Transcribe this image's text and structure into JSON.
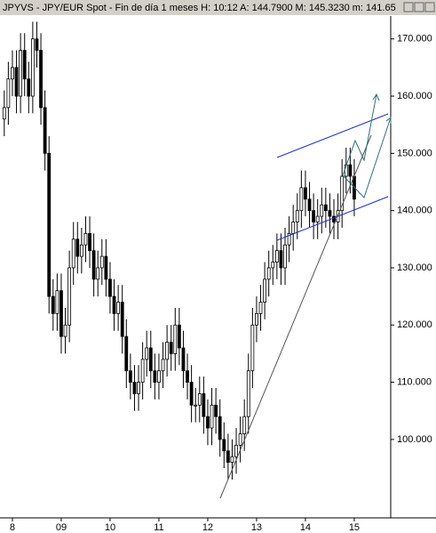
{
  "chart_data": {
    "type": "candlestick",
    "title": "JPYVS - JPY/EUR Spot - Fin de día 1 meses  H: 10:12  A: 144.7900  M: 145.3230  m: 141.65",
    "categories": [
      null,
      null,
      "8",
      null,
      null,
      null,
      null,
      null,
      null,
      null,
      null,
      null,
      null,
      null,
      "09",
      null,
      null,
      null,
      null,
      null,
      null,
      null,
      null,
      null,
      null,
      null,
      "10",
      null,
      null,
      null,
      null,
      null,
      null,
      null,
      null,
      null,
      null,
      null,
      "11",
      null,
      null,
      null,
      null,
      null,
      null,
      null,
      null,
      null,
      null,
      null,
      "12",
      null,
      null,
      null,
      null,
      null,
      null,
      null,
      null,
      null,
      null,
      null,
      "13",
      null,
      null,
      null,
      null,
      null,
      null,
      null,
      null,
      null,
      null,
      null,
      "14",
      null,
      null,
      null,
      null,
      null,
      null,
      null,
      null,
      null,
      null,
      null,
      "15"
    ],
    "open": [
      156,
      158,
      163,
      165,
      160,
      168,
      163,
      160,
      170,
      168,
      158,
      150,
      125,
      122,
      126,
      118,
      120,
      130,
      135,
      132,
      134,
      136,
      133,
      128,
      130,
      132,
      128,
      125,
      122,
      124,
      118,
      112,
      110,
      108,
      110,
      114,
      116,
      112,
      110,
      112,
      114,
      117,
      115,
      120,
      116,
      112,
      110,
      106,
      106,
      108,
      104,
      102,
      106,
      104,
      100,
      98,
      96,
      97,
      99,
      101,
      104,
      112,
      120,
      122,
      124,
      128,
      130,
      131,
      133,
      130,
      134,
      136,
      138,
      140,
      144,
      142,
      140,
      138,
      139,
      141,
      140,
      139,
      138,
      140,
      146,
      148,
      146
    ],
    "high": [
      161,
      166,
      168,
      168,
      171,
      171,
      166,
      173,
      173,
      171,
      161,
      153,
      128,
      129,
      129,
      123,
      133,
      138,
      138,
      137,
      139,
      139,
      136,
      133,
      135,
      135,
      131,
      128,
      127,
      127,
      121,
      115,
      113,
      113,
      117,
      119,
      119,
      115,
      115,
      117,
      120,
      120,
      123,
      123,
      119,
      115,
      113,
      109,
      111,
      111,
      107,
      109,
      109,
      107,
      103,
      101,
      100,
      102,
      104,
      107,
      115,
      123,
      125,
      127,
      131,
      133,
      134,
      136,
      136,
      137,
      139,
      141,
      143,
      147,
      147,
      145,
      143,
      142,
      144,
      144,
      143,
      142,
      143,
      149,
      151,
      151,
      149
    ],
    "low": [
      153,
      155,
      160,
      157,
      157,
      160,
      157,
      157,
      165,
      155,
      147,
      122,
      119,
      119,
      115,
      115,
      117,
      127,
      129,
      129,
      131,
      130,
      125,
      125,
      127,
      125,
      122,
      119,
      119,
      115,
      109,
      107,
      105,
      105,
      107,
      111,
      109,
      107,
      107,
      109,
      111,
      112,
      112,
      113,
      109,
      107,
      103,
      103,
      103,
      101,
      99,
      99,
      101,
      97,
      95,
      93,
      93,
      94,
      96,
      98,
      101,
      109,
      117,
      119,
      121,
      125,
      127,
      128,
      127,
      127,
      131,
      133,
      135,
      137,
      139,
      137,
      135,
      135,
      136,
      137,
      136,
      135,
      135,
      137,
      143,
      143,
      139
    ],
    "close": [
      158,
      163,
      165,
      160,
      168,
      163,
      160,
      170,
      168,
      158,
      150,
      125,
      122,
      126,
      118,
      120,
      130,
      135,
      132,
      134,
      136,
      133,
      128,
      130,
      132,
      128,
      125,
      122,
      124,
      118,
      112,
      110,
      108,
      110,
      114,
      116,
      112,
      110,
      112,
      114,
      117,
      115,
      120,
      116,
      112,
      110,
      106,
      106,
      108,
      104,
      102,
      106,
      104,
      100,
      98,
      96,
      97,
      99,
      101,
      104,
      112,
      120,
      122,
      124,
      128,
      130,
      131,
      133,
      130,
      134,
      136,
      138,
      140,
      144,
      142,
      140,
      138,
      139,
      141,
      140,
      139,
      138,
      140,
      146,
      148,
      146,
      142
    ],
    "ylim": [
      86.3,
      174
    ],
    "yticks": [
      {
        "value": 100,
        "label": "100.000"
      },
      {
        "value": 110,
        "label": "110.000"
      },
      {
        "value": 120,
        "label": "120.000"
      },
      {
        "value": 130,
        "label": "130.000"
      },
      {
        "value": 140,
        "label": "140.000"
      },
      {
        "value": 150,
        "label": "150.000"
      },
      {
        "value": 160,
        "label": "160.000"
      },
      {
        "value": 170,
        "label": "170.000"
      }
    ],
    "up_color": "#ffffff",
    "down_color": "#000000"
  }
}
